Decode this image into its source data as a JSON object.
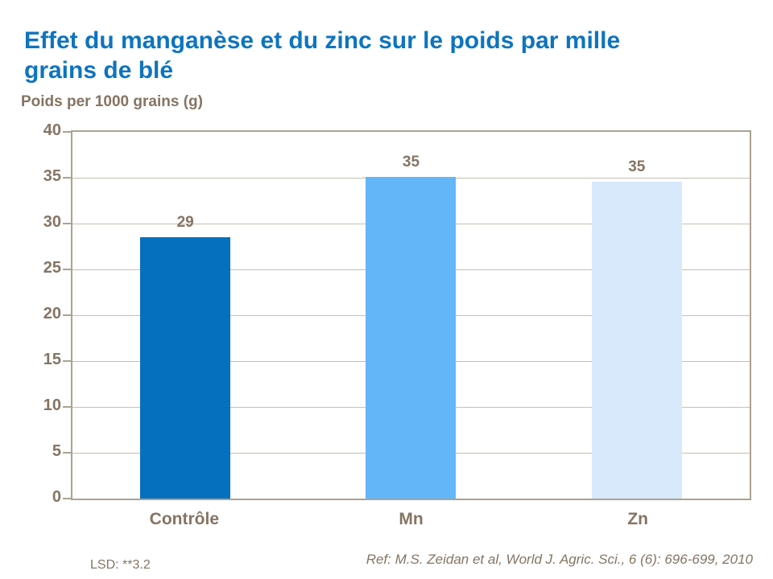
{
  "page": {
    "title_lines": [
      "Effet du manganèse et du zinc sur le poids par mille",
      "grains de blé"
    ],
    "subtitle": "Poids per 1000 grains (g)",
    "footnote_left": "LSD: **3.2",
    "footnote_right": "Ref: M.S. Zeidan et al, World J. Agric. Sci., 6 (6): 696-699, 2010"
  },
  "colors": {
    "title": "#0E74BE",
    "text": "#857463",
    "gridline": "#C7BEB0",
    "plot_border": "#ABA291",
    "bars": [
      "#0470BE",
      "#63B6F8",
      "#D7E9FB"
    ]
  },
  "chart_data": {
    "type": "bar",
    "title": "Effet du manganèse et du zinc sur le poids par mille grains de blé",
    "ylabel": "Poids per 1000 grains (g)",
    "xlabel": "",
    "categories": [
      "Contrôle",
      "Mn",
      "Zn"
    ],
    "values": [
      29,
      35,
      35
    ],
    "data_labels": [
      "29",
      "35",
      "35"
    ],
    "bar_colors": [
      "#0470BE",
      "#63B6F8",
      "#D7E9FB"
    ],
    "ylim": [
      0,
      40
    ],
    "yticks": [
      40,
      35,
      30,
      25,
      20,
      15,
      10,
      5,
      0
    ],
    "grid": true,
    "legend": false,
    "rendered_values": [
      28.5,
      35.1,
      34.6
    ],
    "annotations": [
      "LSD: **3.2",
      "Ref: M.S. Zeidan et al, World J. Agric. Sci., 6 (6): 696-699, 2010"
    ]
  }
}
